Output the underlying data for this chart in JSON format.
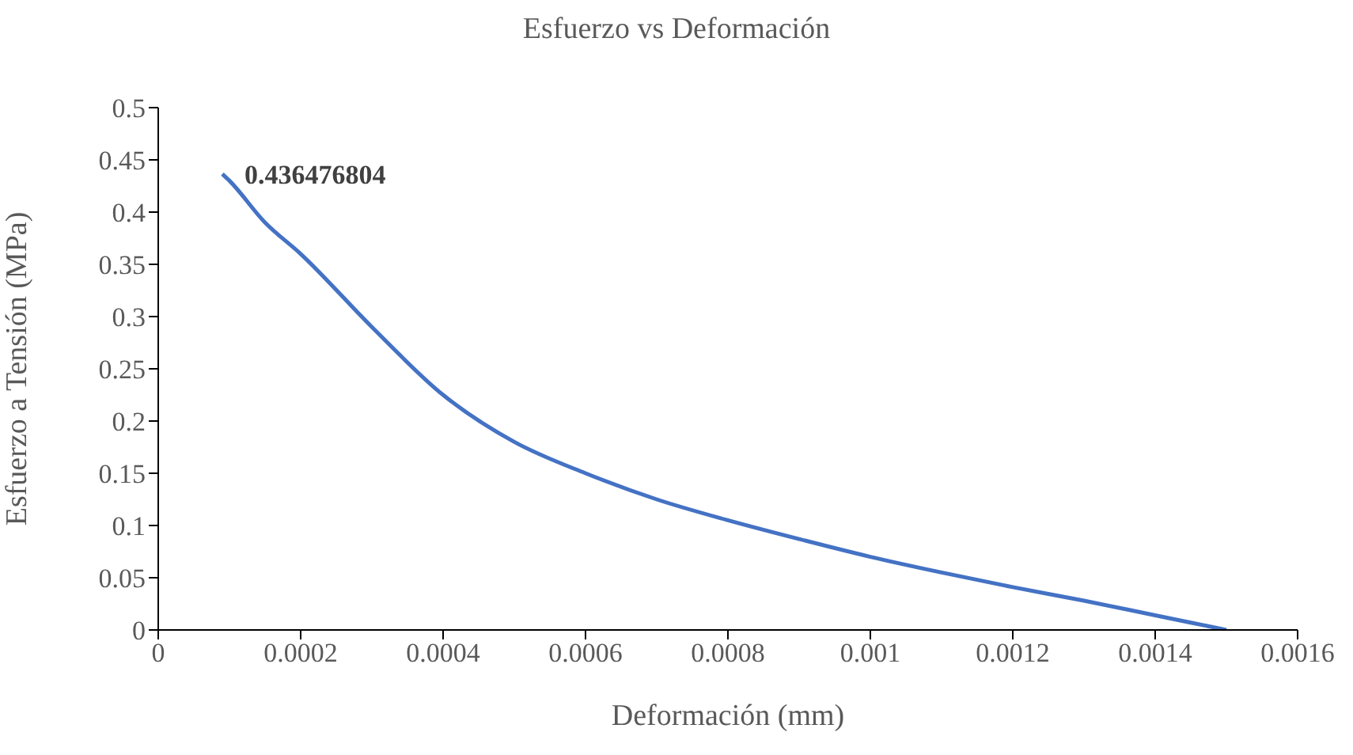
{
  "chart_data": {
    "type": "line",
    "title": "Esfuerzo vs Deformación",
    "xlabel": "Deformación (mm)",
    "ylabel": "Esfuerzo a Tensión (MPa)",
    "x": [
      9e-05,
      0.0001,
      0.00015,
      0.0002,
      0.0003,
      0.0004,
      0.0005,
      0.0006,
      0.0007,
      0.0008,
      0.0009,
      0.001,
      0.0011,
      0.0012,
      0.0013,
      0.0014,
      0.0015
    ],
    "series": [
      {
        "color": "#4472c4",
        "values": [
          0.436476804,
          0.43,
          0.39,
          0.36,
          0.29,
          0.225,
          0.18,
          0.15,
          0.125,
          0.105,
          0.087,
          0.07,
          0.055,
          0.041,
          0.028,
          0.014,
          0
        ],
        "value_labels": [
          "0.436476804",
          null,
          null,
          null,
          null,
          null,
          null,
          null,
          null,
          null,
          null,
          null,
          null,
          null,
          null,
          null,
          null
        ]
      }
    ],
    "xlim": [
      0,
      0.0016
    ],
    "xticks": [
      0,
      0.0002,
      0.0004,
      0.0006,
      0.0008,
      0.001,
      0.0012,
      0.0014,
      0.0016
    ],
    "ylim": [
      0,
      0.5
    ],
    "yticks": [
      0,
      0.05,
      0.1,
      0.15,
      0.2,
      0.25,
      0.3,
      0.35,
      0.4,
      0.45,
      0.5
    ],
    "grid": false,
    "legend": false,
    "marker": "none",
    "line_style": "solid"
  }
}
